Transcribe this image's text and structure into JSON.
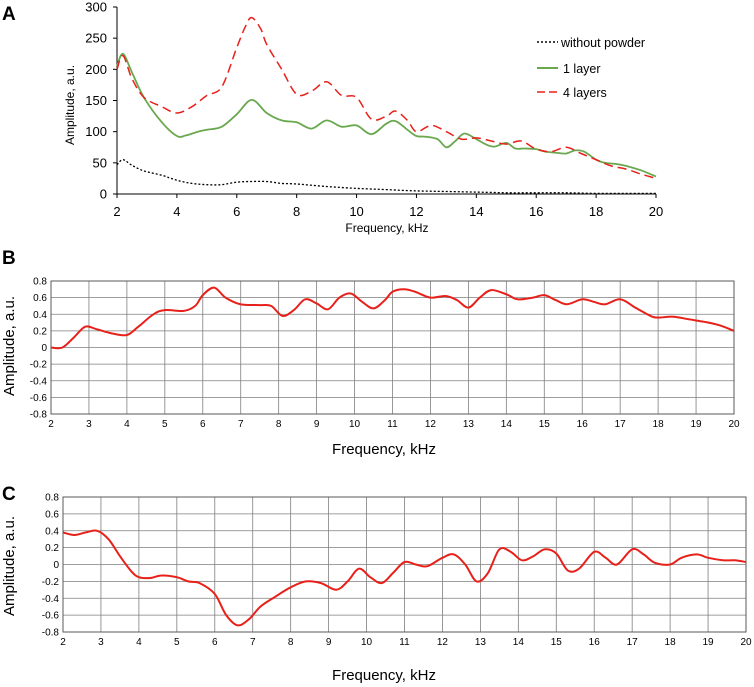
{
  "colors": {
    "without": "#000000",
    "one_layer": "#6aa84f",
    "four_layers": "#e8201a",
    "curve": "#e8201a",
    "grid": "#7f7f7f"
  },
  "chart_data": [
    {
      "panel_label": "A",
      "type": "line",
      "xlabel": "Frequency, kHz",
      "ylabel": "Amplitude, a.u.",
      "xlim": [
        2,
        20
      ],
      "ylim": [
        0,
        300
      ],
      "xticks": [
        "2",
        "4",
        "6",
        "8",
        "10",
        "12",
        "14",
        "16",
        "18",
        "20"
      ],
      "yticks": [
        "0",
        "50",
        "100",
        "150",
        "200",
        "250",
        "300"
      ],
      "grid": false,
      "legend_position": "top-right",
      "series": [
        {
          "name": "without powder",
          "style": "dotted",
          "x": [
            2,
            2.2,
            2.5,
            2.9,
            3.5,
            4,
            4.5,
            5,
            5.5,
            6,
            6.5,
            7,
            7.5,
            8,
            9,
            10,
            11,
            12,
            13,
            14,
            15,
            16,
            17,
            18,
            19,
            20
          ],
          "values": [
            47,
            55,
            46,
            37,
            30,
            22,
            17,
            15,
            15,
            19,
            20,
            20,
            17,
            16,
            12,
            9,
            7,
            5,
            4,
            3,
            2,
            2,
            2,
            1,
            1,
            1
          ]
        },
        {
          "name": "1 layer",
          "style": "solid",
          "x": [
            2,
            2.2,
            2.5,
            2.9,
            3.5,
            4,
            4.3,
            4.7,
            5,
            5.5,
            6,
            6.5,
            7,
            7.5,
            8,
            8.5,
            9,
            9.5,
            10,
            10.5,
            11,
            11.3,
            11.7,
            12,
            12.3,
            12.7,
            13,
            13.3,
            13.6,
            14,
            14.3,
            14.6,
            15,
            15.3,
            15.6,
            16,
            16.3,
            16.7,
            17,
            17.3,
            17.6,
            18,
            18.3,
            18.7,
            19,
            19.5,
            20
          ],
          "values": [
            205,
            225,
            195,
            155,
            115,
            93,
            94,
            100,
            103,
            108,
            128,
            151,
            130,
            118,
            115,
            105,
            118,
            108,
            110,
            96,
            113,
            117,
            103,
            93,
            92,
            88,
            75,
            85,
            97,
            88,
            80,
            76,
            82,
            73,
            73,
            72,
            68,
            66,
            65,
            70,
            68,
            55,
            50,
            48,
            45,
            38,
            28
          ]
        },
        {
          "name": "4 layers",
          "style": "dashed",
          "x": [
            2,
            2.2,
            2.5,
            2.9,
            3.5,
            4,
            4.5,
            5,
            5.5,
            6,
            6.3,
            6.5,
            6.8,
            7,
            7.5,
            8,
            8.5,
            9,
            9.5,
            10,
            10.5,
            11,
            11.3,
            11.7,
            12,
            12.5,
            13,
            13.5,
            14,
            14.5,
            15,
            15.5,
            16,
            16.5,
            17,
            17.5,
            18,
            18.5,
            19,
            19.5,
            20
          ],
          "values": [
            200,
            222,
            185,
            155,
            140,
            130,
            140,
            158,
            172,
            235,
            270,
            283,
            265,
            240,
            200,
            160,
            165,
            180,
            158,
            155,
            120,
            125,
            133,
            118,
            100,
            110,
            100,
            88,
            90,
            85,
            80,
            85,
            72,
            68,
            75,
            65,
            55,
            45,
            40,
            32,
            25
          ]
        }
      ]
    },
    {
      "panel_label": "B",
      "type": "line",
      "xlabel": "Frequency, kHz",
      "ylabel": "Amplitude, a.u.",
      "xlim": [
        2,
        20
      ],
      "ylim": [
        -0.8,
        0.8
      ],
      "xticks": [
        "2",
        "3",
        "4",
        "5",
        "6",
        "7",
        "8",
        "9",
        "10",
        "11",
        "12",
        "13",
        "14",
        "15",
        "16",
        "17",
        "18",
        "19",
        "20"
      ],
      "yticks": [
        "-0.8",
        "-0.6",
        "-0.4",
        "-0.2",
        "0",
        "0.2",
        "0.4",
        "0.6",
        "0.8"
      ],
      "grid": true,
      "series": [
        {
          "name": "",
          "x": [
            2,
            2.3,
            2.6,
            2.9,
            3.2,
            3.6,
            4,
            4.3,
            4.7,
            5,
            5.5,
            5.8,
            6,
            6.3,
            6.6,
            7,
            7.5,
            7.8,
            8.1,
            8.4,
            8.7,
            9,
            9.3,
            9.6,
            9.9,
            10.2,
            10.5,
            10.8,
            11,
            11.3,
            11.6,
            12,
            12.4,
            12.7,
            13,
            13.3,
            13.6,
            14,
            14.3,
            14.7,
            15,
            15.3,
            15.6,
            16,
            16.3,
            16.6,
            17,
            17.4,
            17.8,
            18,
            18.4,
            18.8,
            19.2,
            19.6,
            20
          ],
          "values": [
            0,
            0,
            0.12,
            0.25,
            0.22,
            0.17,
            0.15,
            0.25,
            0.4,
            0.45,
            0.44,
            0.5,
            0.63,
            0.72,
            0.6,
            0.52,
            0.51,
            0.5,
            0.38,
            0.45,
            0.58,
            0.53,
            0.46,
            0.6,
            0.65,
            0.55,
            0.47,
            0.57,
            0.67,
            0.7,
            0.67,
            0.6,
            0.62,
            0.57,
            0.48,
            0.6,
            0.69,
            0.64,
            0.58,
            0.6,
            0.63,
            0.57,
            0.52,
            0.58,
            0.55,
            0.52,
            0.58,
            0.48,
            0.38,
            0.36,
            0.37,
            0.34,
            0.31,
            0.27,
            0.2
          ]
        }
      ]
    },
    {
      "panel_label": "C",
      "type": "line",
      "xlabel": "Frequency, kHz",
      "ylabel": "Amplitude, a.u.",
      "xlim": [
        2,
        20
      ],
      "ylim": [
        -0.8,
        0.8
      ],
      "xticks": [
        "2",
        "3",
        "4",
        "5",
        "6",
        "7",
        "8",
        "9",
        "10",
        "11",
        "12",
        "13",
        "14",
        "15",
        "16",
        "17",
        "18",
        "19",
        "20"
      ],
      "yticks": [
        "-0.8",
        "-0.6",
        "-0.4",
        "-0.2",
        "0",
        "0.2",
        "0.4",
        "0.6",
        "0.8"
      ],
      "grid": true,
      "series": [
        {
          "name": "",
          "x": [
            2,
            2.3,
            2.6,
            2.9,
            3.2,
            3.5,
            3.8,
            4,
            4.3,
            4.6,
            5,
            5.3,
            5.6,
            6,
            6.3,
            6.6,
            6.9,
            7.2,
            7.6,
            8,
            8.4,
            8.8,
            9.2,
            9.5,
            9.8,
            10.1,
            10.4,
            10.7,
            11,
            11.3,
            11.6,
            12,
            12.3,
            12.6,
            12.9,
            13.2,
            13.5,
            13.8,
            14.1,
            14.4,
            14.7,
            15,
            15.3,
            15.6,
            16,
            16.3,
            16.6,
            17,
            17.3,
            17.6,
            18,
            18.3,
            18.7,
            19,
            19.4,
            19.7,
            20
          ],
          "values": [
            0.38,
            0.35,
            0.38,
            0.4,
            0.3,
            0.1,
            -0.08,
            -0.15,
            -0.16,
            -0.13,
            -0.15,
            -0.2,
            -0.22,
            -0.35,
            -0.6,
            -0.72,
            -0.65,
            -0.5,
            -0.38,
            -0.27,
            -0.2,
            -0.22,
            -0.3,
            -0.2,
            -0.05,
            -0.15,
            -0.22,
            -0.1,
            0.03,
            0.0,
            -0.02,
            0.08,
            0.12,
            0.0,
            -0.2,
            -0.1,
            0.18,
            0.15,
            0.05,
            0.1,
            0.18,
            0.13,
            -0.07,
            -0.05,
            0.15,
            0.08,
            0.0,
            0.18,
            0.12,
            0.02,
            0.0,
            0.08,
            0.12,
            0.08,
            0.05,
            0.05,
            0.03
          ]
        }
      ]
    }
  ]
}
